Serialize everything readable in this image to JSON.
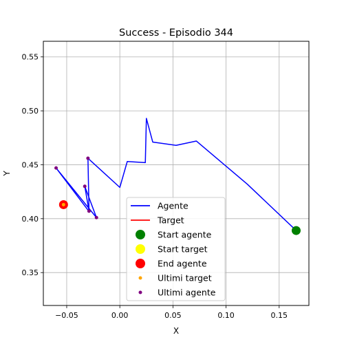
{
  "chart_data": {
    "type": "line",
    "title": "Success - Episodio 344",
    "xlabel": "X",
    "ylabel": "Y",
    "xlim": [
      -0.072,
      0.178
    ],
    "ylim": [
      0.3195,
      0.5645
    ],
    "x_ticks": [
      -0.05,
      0.0,
      0.05,
      0.1,
      0.15
    ],
    "x_tick_labels": [
      "−0.05",
      "0.00",
      "0.05",
      "0.10",
      "0.15"
    ],
    "y_ticks": [
      0.35,
      0.4,
      0.45,
      0.5,
      0.55
    ],
    "y_tick_labels": [
      "0.35",
      "0.40",
      "0.45",
      "0.50",
      "0.55"
    ],
    "grid": true,
    "legend_position": "lower-center",
    "series": [
      {
        "name": "Agente",
        "kind": "line",
        "color": "#0000ff",
        "points": [
          [
            0.166,
            0.389
          ],
          [
            0.12,
            0.432
          ],
          [
            0.072,
            0.472
          ],
          [
            0.053,
            0.468
          ],
          [
            0.031,
            0.471
          ],
          [
            0.025,
            0.493
          ],
          [
            0.024,
            0.452
          ],
          [
            0.007,
            0.453
          ],
          [
            0.0,
            0.429
          ],
          [
            -0.03,
            0.456
          ],
          [
            -0.029,
            0.407
          ],
          [
            -0.033,
            0.43
          ],
          [
            -0.022,
            0.401
          ],
          [
            -0.06,
            0.447
          ],
          [
            -0.03,
            0.408
          ]
        ]
      },
      {
        "name": "Target",
        "kind": "line",
        "color": "#ff0000",
        "points": []
      },
      {
        "name": "Start agente",
        "kind": "marker",
        "color": "#008000",
        "points": [
          [
            0.166,
            0.389
          ]
        ]
      },
      {
        "name": "Start target",
        "kind": "marker",
        "color": "#ffff00",
        "points": []
      },
      {
        "name": "End agente",
        "kind": "marker",
        "color": "#ff0000",
        "points": [
          [
            -0.053,
            0.413
          ]
        ]
      },
      {
        "name": "Ultimi target",
        "kind": "dot",
        "color": "#ffa500",
        "points": [
          [
            -0.053,
            0.413
          ]
        ]
      },
      {
        "name": "Ultimi agente",
        "kind": "dot",
        "color": "#800080",
        "points": [
          [
            -0.022,
            0.401
          ],
          [
            -0.029,
            0.407
          ],
          [
            -0.033,
            0.43
          ],
          [
            -0.03,
            0.456
          ],
          [
            -0.06,
            0.447
          ]
        ]
      }
    ]
  }
}
